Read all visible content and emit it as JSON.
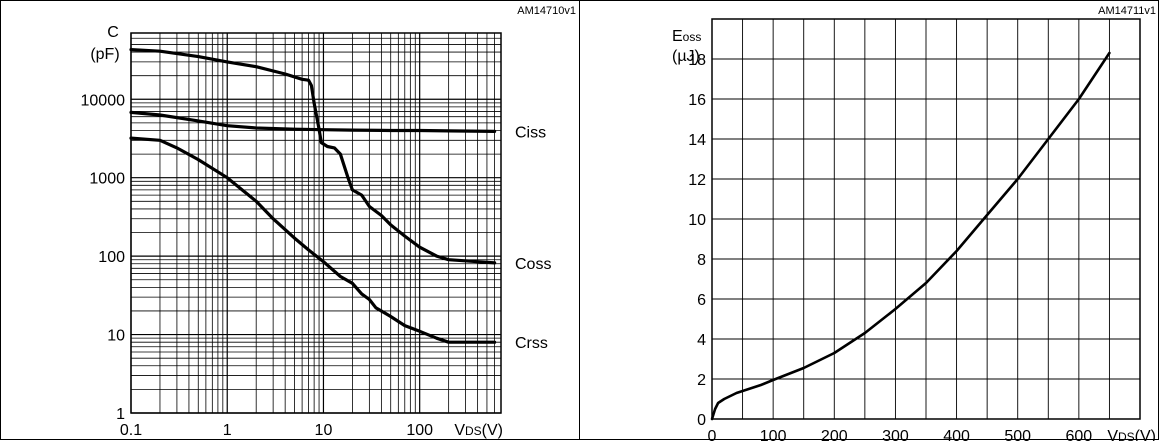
{
  "chart_data": [
    {
      "type": "line",
      "figure_id": "AM14710v1",
      "y_unit_symbol": "C",
      "y_unit": "(pF)",
      "x_axis_label": "VDS(V)",
      "x_scale": "log",
      "y_scale": "log",
      "xlim": [
        0.1,
        700
      ],
      "ylim": [
        1,
        70000
      ],
      "x_ticks": [
        {
          "value": 0.1,
          "label": "0.1"
        },
        {
          "value": 1,
          "label": "1"
        },
        {
          "value": 10,
          "label": "10"
        },
        {
          "value": 100,
          "label": "100"
        }
      ],
      "y_ticks": [
        {
          "value": 1,
          "label": "1"
        },
        {
          "value": 10,
          "label": "10"
        },
        {
          "value": 100,
          "label": "100"
        },
        {
          "value": 1000,
          "label": "1000"
        },
        {
          "value": 10000,
          "label": "10000"
        }
      ],
      "series": [
        {
          "name": "Ciss",
          "points": [
            [
              0.1,
              6800
            ],
            [
              0.2,
              6300
            ],
            [
              0.5,
              5300
            ],
            [
              1,
              4600
            ],
            [
              2,
              4300
            ],
            [
              5,
              4150
            ],
            [
              10,
              4100
            ],
            [
              20,
              4050
            ],
            [
              50,
              4000
            ],
            [
              100,
              4000
            ],
            [
              200,
              3950
            ],
            [
              600,
              3900
            ]
          ]
        },
        {
          "name": "Coss",
          "points": [
            [
              0.1,
              43000
            ],
            [
              0.2,
              41000
            ],
            [
              0.5,
              35000
            ],
            [
              1,
              30000
            ],
            [
              2,
              26000
            ],
            [
              4,
              21000
            ],
            [
              6,
              18000
            ],
            [
              7,
              17500
            ],
            [
              7.5,
              15000
            ],
            [
              8,
              9000
            ],
            [
              9,
              4200
            ],
            [
              9.5,
              2800
            ],
            [
              11,
              2500
            ],
            [
              13,
              2400
            ],
            [
              15,
              2000
            ],
            [
              18,
              1000
            ],
            [
              20,
              700
            ],
            [
              25,
              600
            ],
            [
              30,
              430
            ],
            [
              40,
              330
            ],
            [
              50,
              250
            ],
            [
              70,
              180
            ],
            [
              100,
              130
            ],
            [
              150,
              100
            ],
            [
              200,
              90
            ],
            [
              400,
              85
            ],
            [
              600,
              82
            ]
          ]
        },
        {
          "name": "Crss",
          "points": [
            [
              0.1,
              3200
            ],
            [
              0.2,
              3000
            ],
            [
              0.3,
              2400
            ],
            [
              0.5,
              1700
            ],
            [
              1,
              1000
            ],
            [
              2,
              500
            ],
            [
              3,
              300
            ],
            [
              5,
              170
            ],
            [
              7,
              120
            ],
            [
              10,
              85
            ],
            [
              15,
              55
            ],
            [
              20,
              45
            ],
            [
              25,
              33
            ],
            [
              30,
              28
            ],
            [
              35,
              22
            ],
            [
              50,
              17
            ],
            [
              70,
              13
            ],
            [
              100,
              11
            ],
            [
              150,
              9
            ],
            [
              200,
              8
            ],
            [
              400,
              8
            ],
            [
              600,
              8
            ]
          ]
        }
      ]
    },
    {
      "type": "line",
      "figure_id": "AM14711v1",
      "y_unit_symbol": "Eoss",
      "y_unit": "(µJ)",
      "x_axis_label": "VDS(V)",
      "xlim": [
        0,
        700
      ],
      "ylim": [
        0,
        20
      ],
      "x_ticks": [
        "0",
        "100",
        "200",
        "300",
        "400",
        "500",
        "600"
      ],
      "y_ticks": [
        "0",
        "2",
        "4",
        "6",
        "8",
        "10",
        "12",
        "14",
        "16",
        "18"
      ],
      "series": [
        {
          "name": "Eoss",
          "points": [
            [
              0,
              0
            ],
            [
              5,
              0.5
            ],
            [
              10,
              0.8
            ],
            [
              20,
              1.0
            ],
            [
              40,
              1.3
            ],
            [
              60,
              1.5
            ],
            [
              80,
              1.7
            ],
            [
              100,
              1.95
            ],
            [
              150,
              2.55
            ],
            [
              200,
              3.3
            ],
            [
              250,
              4.3
            ],
            [
              300,
              5.5
            ],
            [
              350,
              6.8
            ],
            [
              400,
              8.4
            ],
            [
              450,
              10.2
            ],
            [
              500,
              12.0
            ],
            [
              550,
              14.0
            ],
            [
              600,
              16.0
            ],
            [
              650,
              18.3
            ]
          ]
        }
      ]
    }
  ]
}
